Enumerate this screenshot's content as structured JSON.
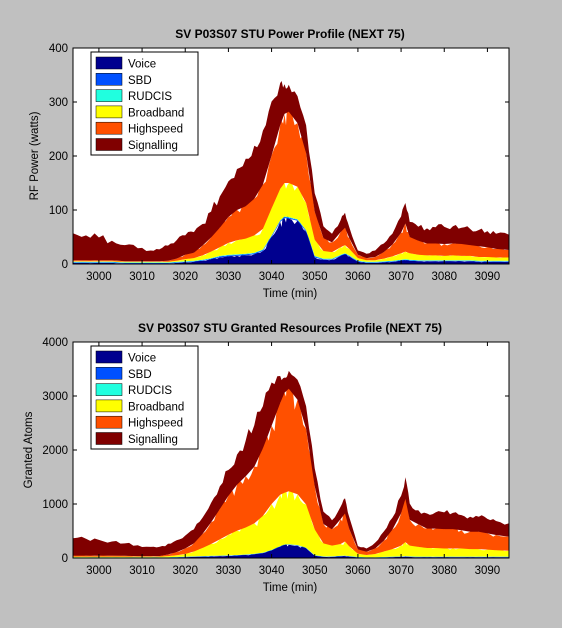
{
  "colors": {
    "figure_bg": "#c0c0c0",
    "axes_bg": "#ffffff",
    "Voice": "#00008f",
    "SBD": "#0050ff",
    "RUDCIS": "#20ffdf",
    "Broadband": "#ffff00",
    "Highspeed": "#ff5000",
    "Signalling": "#800000"
  },
  "chart_data": [
    {
      "type": "area",
      "stacked": true,
      "title": "SV P03S07 STU Power Profile (NEXT 75)",
      "xlabel": "Time (min)",
      "ylabel": "RF Power (watts)",
      "xlim": [
        2994,
        3095
      ],
      "ylim": [
        0,
        400
      ],
      "xticks": [
        3000,
        3010,
        3020,
        3030,
        3040,
        3050,
        3060,
        3070,
        3080,
        3090
      ],
      "yticks": [
        0,
        100,
        200,
        300,
        400
      ],
      "legend_position": "top-left",
      "grid": false,
      "x": [
        2994,
        2997,
        3000,
        3003,
        3006,
        3009,
        3012,
        3014,
        3016,
        3018,
        3020,
        3022,
        3024,
        3026,
        3028,
        3030,
        3032,
        3034,
        3036,
        3038,
        3040,
        3042,
        3043,
        3044,
        3046,
        3048,
        3050,
        3052,
        3054,
        3056,
        3057,
        3058,
        3060,
        3062,
        3064,
        3066,
        3068,
        3070,
        3071,
        3072,
        3074,
        3076,
        3078,
        3080,
        3082,
        3084,
        3086,
        3088,
        3090,
        3092,
        3095
      ],
      "series": [
        {
          "name": "Voice",
          "values": [
            2,
            2,
            2,
            2,
            1,
            1,
            1,
            1,
            1,
            2,
            3,
            4,
            6,
            9,
            12,
            14,
            15,
            16,
            18,
            24,
            50,
            78,
            85,
            84,
            80,
            60,
            12,
            8,
            8,
            15,
            18,
            14,
            4,
            2,
            2,
            3,
            4,
            6,
            7,
            6,
            5,
            5,
            5,
            5,
            5,
            5,
            5,
            4,
            4,
            4,
            4
          ]
        },
        {
          "name": "SBD",
          "values": [
            1,
            1,
            1,
            1,
            1,
            1,
            1,
            1,
            1,
            1,
            1,
            1,
            1,
            1,
            2,
            2,
            2,
            2,
            2,
            2,
            2,
            2,
            2,
            2,
            2,
            2,
            2,
            1,
            1,
            1,
            1,
            1,
            1,
            1,
            1,
            1,
            1,
            1,
            1,
            1,
            1,
            1,
            1,
            1,
            1,
            1,
            1,
            1,
            1,
            1,
            1
          ]
        },
        {
          "name": "RUDCIS",
          "values": [
            1,
            1,
            1,
            1,
            1,
            1,
            1,
            1,
            1,
            1,
            1,
            1,
            1,
            1,
            1,
            1,
            1,
            1,
            1,
            1,
            1,
            1,
            1,
            1,
            1,
            1,
            1,
            1,
            1,
            1,
            1,
            1,
            1,
            1,
            1,
            1,
            1,
            1,
            1,
            1,
            1,
            1,
            1,
            1,
            1,
            1,
            1,
            1,
            1,
            1,
            1
          ]
        },
        {
          "name": "Broadband",
          "values": [
            1,
            1,
            1,
            1,
            1,
            1,
            1,
            1,
            1,
            2,
            4,
            5,
            8,
            12,
            16,
            22,
            26,
            28,
            32,
            38,
            50,
            58,
            62,
            63,
            60,
            50,
            30,
            14,
            12,
            14,
            15,
            12,
            5,
            3,
            3,
            5,
            8,
            12,
            14,
            12,
            10,
            9,
            9,
            8,
            9,
            8,
            8,
            7,
            7,
            6,
            6
          ]
        },
        {
          "name": "Highspeed",
          "values": [
            2,
            2,
            2,
            2,
            1,
            1,
            1,
            1,
            2,
            4,
            8,
            10,
            18,
            26,
            36,
            48,
            56,
            60,
            68,
            82,
            98,
            118,
            128,
            132,
            118,
            92,
            52,
            24,
            18,
            28,
            32,
            20,
            6,
            4,
            6,
            12,
            22,
            38,
            52,
            30,
            26,
            22,
            22,
            22,
            22,
            22,
            20,
            20,
            18,
            16,
            14
          ]
        },
        {
          "name": "Signalling",
          "values": [
            50,
            46,
            42,
            36,
            30,
            24,
            20,
            22,
            28,
            34,
            36,
            38,
            40,
            48,
            58,
            66,
            76,
            88,
            98,
            100,
            100,
            78,
            55,
            50,
            50,
            52,
            34,
            22,
            16,
            22,
            28,
            20,
            8,
            8,
            12,
            16,
            20,
            30,
            38,
            28,
            26,
            28,
            30,
            32,
            32,
            30,
            30,
            30,
            30,
            28,
            28
          ]
        }
      ]
    },
    {
      "type": "area",
      "stacked": true,
      "title": "SV P03S07 STU Granted Resources Profile (NEXT 75)",
      "xlabel": "Time (min)",
      "ylabel": "Granted Atoms",
      "xlim": [
        2994,
        3095
      ],
      "ylim": [
        0,
        4000
      ],
      "xticks": [
        3000,
        3010,
        3020,
        3030,
        3040,
        3050,
        3060,
        3070,
        3080,
        3090
      ],
      "yticks": [
        0,
        1000,
        2000,
        3000,
        4000
      ],
      "legend_position": "top-left",
      "grid": false,
      "x": [
        2994,
        2997,
        3000,
        3003,
        3006,
        3009,
        3012,
        3014,
        3016,
        3018,
        3020,
        3022,
        3024,
        3026,
        3028,
        3030,
        3032,
        3034,
        3036,
        3038,
        3040,
        3042,
        3043,
        3044,
        3046,
        3048,
        3050,
        3052,
        3054,
        3056,
        3057,
        3058,
        3060,
        3062,
        3064,
        3066,
        3068,
        3070,
        3071,
        3072,
        3074,
        3076,
        3078,
        3080,
        3082,
        3084,
        3086,
        3088,
        3090,
        3092,
        3095
      ],
      "series": [
        {
          "name": "Voice",
          "values": [
            5,
            5,
            5,
            5,
            5,
            5,
            5,
            5,
            5,
            10,
            15,
            20,
            25,
            30,
            35,
            40,
            45,
            55,
            70,
            90,
            140,
            210,
            240,
            245,
            230,
            180,
            40,
            20,
            20,
            30,
            35,
            25,
            10,
            5,
            5,
            10,
            15,
            20,
            25,
            20,
            15,
            15,
            15,
            15,
            15,
            15,
            15,
            15,
            15,
            15,
            15
          ]
        },
        {
          "name": "SBD",
          "values": [
            5,
            5,
            5,
            5,
            5,
            5,
            5,
            5,
            5,
            5,
            5,
            5,
            5,
            5,
            5,
            5,
            5,
            5,
            5,
            5,
            5,
            5,
            5,
            5,
            5,
            5,
            5,
            5,
            5,
            5,
            5,
            5,
            5,
            5,
            5,
            5,
            5,
            5,
            5,
            5,
            5,
            5,
            5,
            5,
            5,
            5,
            5,
            5,
            5,
            5,
            5
          ]
        },
        {
          "name": "RUDCIS",
          "values": [
            5,
            5,
            5,
            5,
            5,
            5,
            5,
            5,
            5,
            5,
            5,
            5,
            5,
            5,
            5,
            5,
            5,
            5,
            5,
            5,
            5,
            5,
            5,
            5,
            5,
            5,
            5,
            5,
            5,
            5,
            5,
            5,
            5,
            5,
            5,
            5,
            5,
            5,
            5,
            5,
            5,
            5,
            5,
            5,
            5,
            5,
            5,
            5,
            5,
            5,
            5
          ]
        },
        {
          "name": "Broadband",
          "values": [
            10,
            10,
            10,
            10,
            10,
            10,
            10,
            10,
            20,
            30,
            50,
            90,
            150,
            220,
            300,
            380,
            450,
            500,
            560,
            680,
            850,
            950,
            960,
            980,
            940,
            800,
            480,
            240,
            200,
            220,
            260,
            180,
            60,
            40,
            60,
            100,
            140,
            200,
            260,
            200,
            180,
            160,
            160,
            150,
            150,
            150,
            140,
            140,
            130,
            120,
            110
          ]
        },
        {
          "name": "Highspeed",
          "values": [
            20,
            20,
            20,
            20,
            15,
            10,
            10,
            10,
            30,
            60,
            100,
            150,
            260,
            400,
            560,
            720,
            850,
            950,
            1050,
            1250,
            1450,
            1700,
            1850,
            1900,
            1750,
            1400,
            800,
            360,
            300,
            460,
            520,
            320,
            80,
            60,
            100,
            200,
            360,
            600,
            800,
            480,
            420,
            360,
            360,
            360,
            360,
            340,
            320,
            320,
            300,
            280,
            260
          ]
        },
        {
          "name": "Signalling",
          "values": [
            320,
            310,
            290,
            260,
            230,
            200,
            170,
            170,
            200,
            220,
            240,
            260,
            300,
            360,
            420,
            480,
            560,
            660,
            770,
            780,
            800,
            500,
            280,
            330,
            370,
            420,
            330,
            230,
            170,
            230,
            280,
            220,
            60,
            60,
            110,
            170,
            220,
            320,
            400,
            300,
            260,
            280,
            300,
            310,
            300,
            280,
            280,
            280,
            270,
            260,
            250
          ]
        }
      ]
    }
  ]
}
